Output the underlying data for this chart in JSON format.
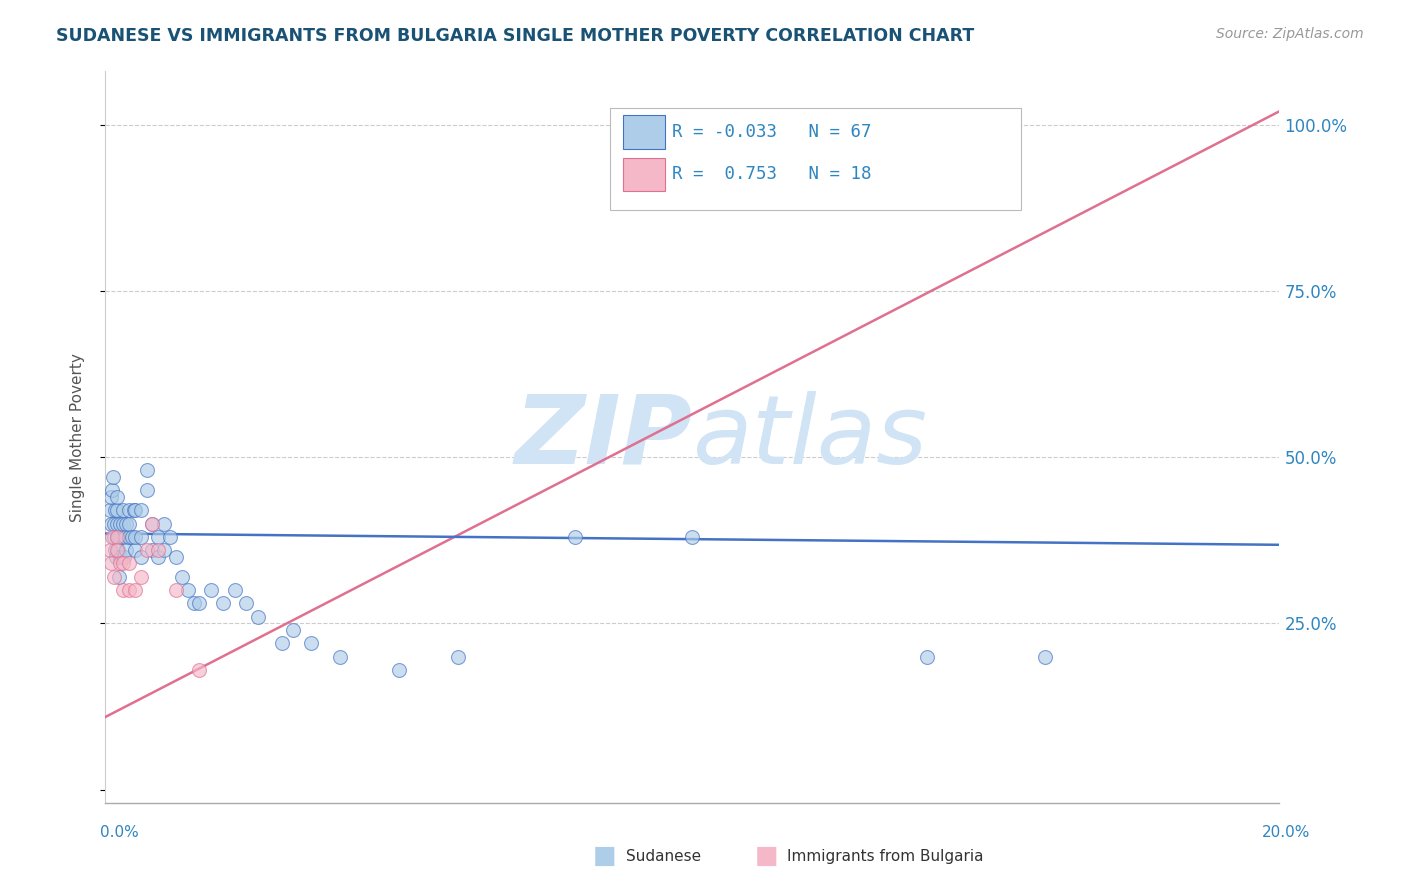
{
  "title": "SUDANESE VS IMMIGRANTS FROM BULGARIA SINGLE MOTHER POVERTY CORRELATION CHART",
  "source_text": "Source: ZipAtlas.com",
  "ylabel": "Single Mother Poverty",
  "yticks": [
    0.0,
    0.25,
    0.5,
    0.75,
    1.0
  ],
  "ytick_labels": [
    "",
    "25.0%",
    "50.0%",
    "75.0%",
    "100.0%"
  ],
  "xlim": [
    0.0,
    0.2
  ],
  "ylim": [
    -0.02,
    1.08
  ],
  "legend_entries": [
    {
      "label": "Sudanese",
      "R": "-0.033",
      "N": "67",
      "color": "#aecde8",
      "line_color": "#4472c4"
    },
    {
      "label": "Immigrants from Bulgaria",
      "R": "0.753",
      "N": "18",
      "color": "#f4b8c8",
      "line_color": "#e07090"
    }
  ],
  "sudanese_x": [
    0.0008,
    0.0009,
    0.001,
    0.0012,
    0.0013,
    0.0015,
    0.0015,
    0.0016,
    0.0017,
    0.0018,
    0.002,
    0.002,
    0.002,
    0.002,
    0.0022,
    0.0022,
    0.0023,
    0.0024,
    0.0025,
    0.0025,
    0.003,
    0.003,
    0.003,
    0.0032,
    0.0033,
    0.0035,
    0.0035,
    0.004,
    0.004,
    0.004,
    0.0045,
    0.0048,
    0.005,
    0.005,
    0.005,
    0.006,
    0.006,
    0.006,
    0.007,
    0.007,
    0.008,
    0.008,
    0.009,
    0.009,
    0.01,
    0.01,
    0.011,
    0.012,
    0.013,
    0.014,
    0.015,
    0.016,
    0.018,
    0.02,
    0.022,
    0.024,
    0.026,
    0.03,
    0.032,
    0.035,
    0.04,
    0.05,
    0.06,
    0.08,
    0.1,
    0.14,
    0.16
  ],
  "sudanese_y": [
    0.42,
    0.4,
    0.44,
    0.45,
    0.47,
    0.38,
    0.4,
    0.42,
    0.36,
    0.35,
    0.38,
    0.4,
    0.42,
    0.44,
    0.36,
    0.38,
    0.32,
    0.35,
    0.38,
    0.4,
    0.38,
    0.4,
    0.42,
    0.35,
    0.38,
    0.36,
    0.4,
    0.38,
    0.4,
    0.42,
    0.38,
    0.42,
    0.36,
    0.38,
    0.42,
    0.35,
    0.38,
    0.42,
    0.45,
    0.48,
    0.36,
    0.4,
    0.35,
    0.38,
    0.36,
    0.4,
    0.38,
    0.35,
    0.32,
    0.3,
    0.28,
    0.28,
    0.3,
    0.28,
    0.3,
    0.28,
    0.26,
    0.22,
    0.24,
    0.22,
    0.2,
    0.18,
    0.2,
    0.38,
    0.38,
    0.2,
    0.2
  ],
  "bulgaria_x": [
    0.0008,
    0.001,
    0.0012,
    0.0015,
    0.002,
    0.002,
    0.0025,
    0.003,
    0.003,
    0.004,
    0.004,
    0.005,
    0.006,
    0.007,
    0.008,
    0.009,
    0.012,
    0.016
  ],
  "bulgaria_y": [
    0.36,
    0.34,
    0.38,
    0.32,
    0.38,
    0.36,
    0.34,
    0.34,
    0.3,
    0.3,
    0.34,
    0.3,
    0.32,
    0.36,
    0.4,
    0.36,
    0.3,
    0.18
  ],
  "blue_trend_x": [
    0.0,
    0.2
  ],
  "blue_trend_y": [
    0.385,
    0.368
  ],
  "pink_trend_x": [
    -0.002,
    0.2
  ],
  "pink_trend_y": [
    0.1,
    1.02
  ],
  "watermark_zip": "ZIP",
  "watermark_atlas": "atlas",
  "watermark_color": "#d0e4f5",
  "background_color": "#ffffff",
  "grid_color": "#cccccc",
  "scatter_alpha": 0.65,
  "scatter_size": 100,
  "title_color": "#1a5276",
  "axis_label_color": "#2e86c1",
  "source_color": "#999999"
}
